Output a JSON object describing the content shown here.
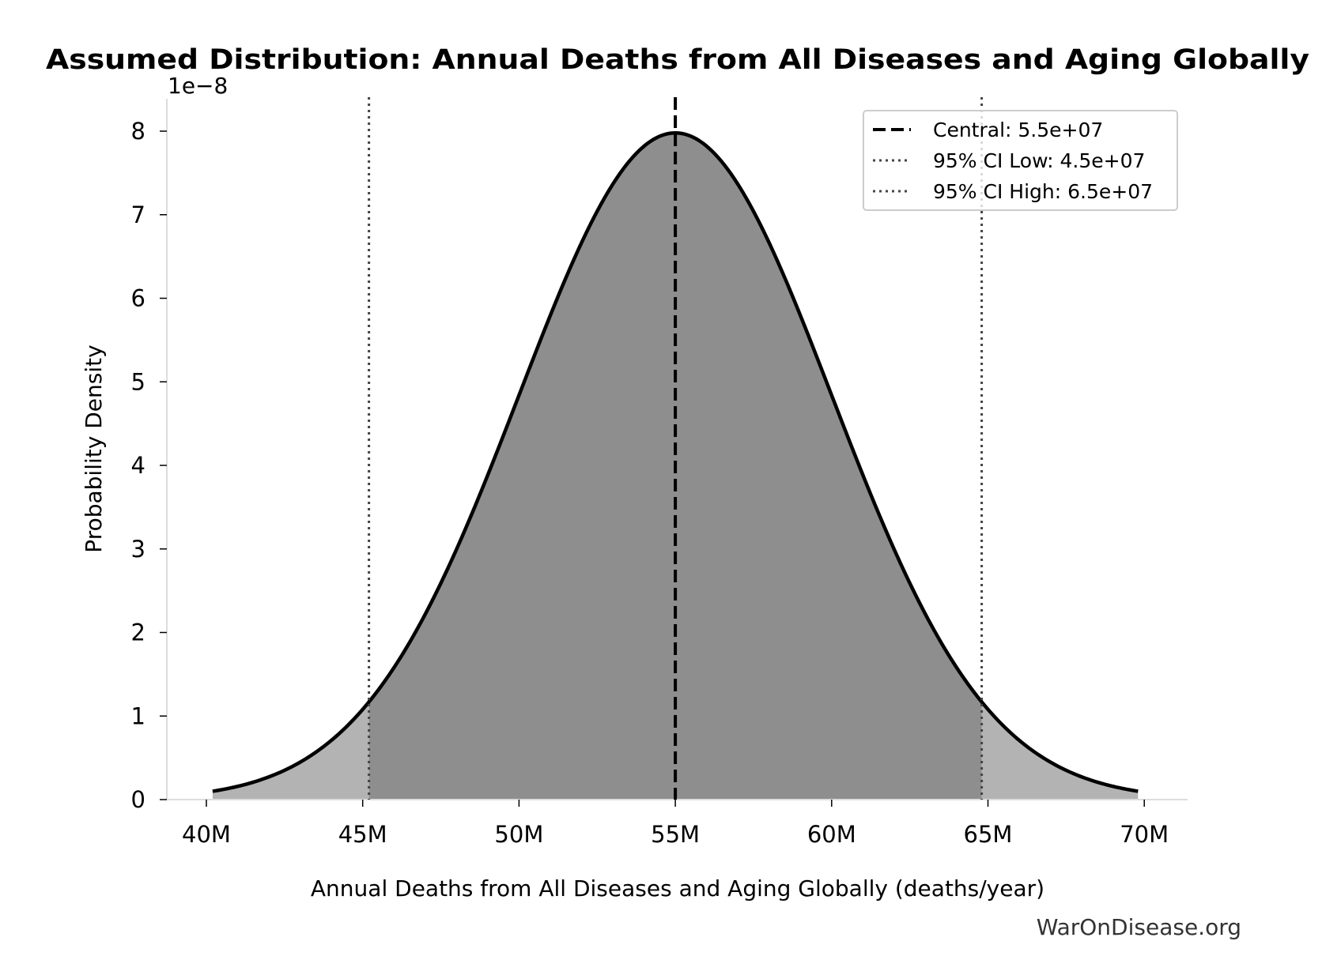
{
  "chart_data": {
    "type": "area",
    "title": "Assumed Distribution: Annual Deaths from All Diseases and Aging Globally",
    "xlabel": "Annual Deaths from All Diseases and Aging Globally (deaths/year)",
    "ylabel": "Probability Density",
    "y_offset_label": "1e−8",
    "distribution": {
      "kind": "normal",
      "mean": 55000000,
      "sd": 5000000
    },
    "x_range_plotted": [
      40200000,
      69800000
    ],
    "xlim": [
      38700000,
      71300000
    ],
    "ylim": [
      0,
      8.4e-08
    ],
    "x_ticks": [
      {
        "value": 40000000,
        "label": "40M"
      },
      {
        "value": 45000000,
        "label": "45M"
      },
      {
        "value": 50000000,
        "label": "50M"
      },
      {
        "value": 55000000,
        "label": "55M"
      },
      {
        "value": 60000000,
        "label": "60M"
      },
      {
        "value": 65000000,
        "label": "65M"
      },
      {
        "value": 70000000,
        "label": "70M"
      }
    ],
    "y_ticks": [
      {
        "value": 0,
        "label": "0"
      },
      {
        "value": 1e-08,
        "label": "1"
      },
      {
        "value": 2e-08,
        "label": "2"
      },
      {
        "value": 3e-08,
        "label": "3"
      },
      {
        "value": 4e-08,
        "label": "4"
      },
      {
        "value": 5e-08,
        "label": "5"
      },
      {
        "value": 6e-08,
        "label": "6"
      },
      {
        "value": 7e-08,
        "label": "7"
      },
      {
        "value": 8e-08,
        "label": "8"
      }
    ],
    "ci_region": [
      45200000,
      64800000
    ],
    "reference_lines": [
      {
        "name": "Central: 5.5e+07",
        "value": 55000000,
        "style": "dashed",
        "color": "#000000"
      },
      {
        "name": "95% CI Low: 4.5e+07",
        "value": 45200000,
        "style": "dotted",
        "color": "#444444"
      },
      {
        "name": "95% CI High: 6.5e+07",
        "value": 64800000,
        "style": "dotted",
        "color": "#444444"
      }
    ],
    "colors": {
      "curve": "#000000",
      "ci_fill": "#8e8e8e",
      "tail_fill": "#b3b3b3",
      "spine": "#dddddd"
    },
    "legend_position": "top-right",
    "grid": false
  },
  "watermark": "WarOnDisease.org"
}
